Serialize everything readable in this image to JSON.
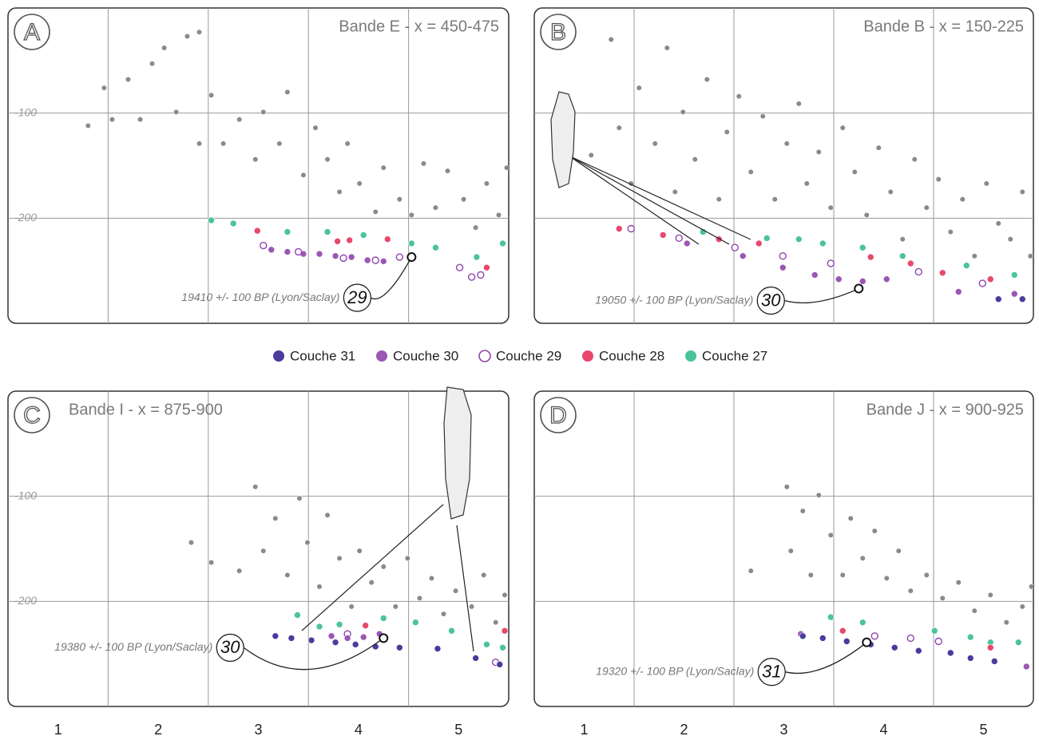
{
  "legend": [
    {
      "name": "Couche 31",
      "color": "#4a3b9c",
      "marker": "filled"
    },
    {
      "name": "Couche 30",
      "color": "#9b57b5",
      "marker": "filled"
    },
    {
      "name": "Couche 29",
      "color": "#8e44ad",
      "marker": "open"
    },
    {
      "name": "Couche 28",
      "color": "#e8486b",
      "marker": "filled"
    },
    {
      "name": "Couche 27",
      "color": "#4cc39a",
      "marker": "filled"
    }
  ],
  "chart_data": [
    {
      "type": "scatter",
      "letter": "A",
      "title": "Bande E - x = 450-475",
      "xlim": [
        0.5,
        5.5
      ],
      "ylim": [
        -300,
        0
      ],
      "yticks": [
        -100,
        -200
      ],
      "ytick_labels": true,
      "xgrid": [
        1.5,
        2.5,
        3.5,
        4.5
      ],
      "series": [
        {
          "color": "#8a8a8a",
          "marker": "filled",
          "x": [
            1.3,
            1.46,
            1.54,
            1.7,
            1.82,
            1.94,
            2.06,
            2.18,
            2.29,
            2.41,
            2.41,
            2.53,
            2.65,
            2.81,
            2.97,
            3.05,
            3.21,
            3.29,
            3.45,
            3.57,
            3.69,
            3.81,
            3.89,
            4.01,
            4.17,
            4.25,
            4.41,
            4.53,
            4.65,
            4.77,
            4.89,
            5.05,
            5.17,
            5.28,
            5.4,
            5.48
          ],
          "values": [
            -112,
            -76,
            -106,
            -68,
            -106,
            -53,
            -38,
            -99,
            -27,
            -23,
            -129,
            -83,
            -129,
            -106,
            -144,
            -99,
            -129,
            -80,
            -159,
            -114,
            -144,
            -175,
            -129,
            -167,
            -194,
            -152,
            -182,
            -197,
            -148,
            -190,
            -155,
            -182,
            -209,
            -167,
            -197,
            -152
          ]
        },
        {
          "color": "#4cc39a",
          "marker": "filled",
          "x": [
            2.53,
            2.75,
            3.29,
            3.69,
            4.05,
            4.53,
            4.77,
            5.18,
            5.44
          ],
          "values": [
            -202,
            -205,
            -213,
            -213,
            -216,
            -224,
            -228,
            -237,
            -224
          ]
        },
        {
          "color": "#e8486b",
          "marker": "filled",
          "x": [
            2.99,
            3.79,
            3.91,
            4.29,
            5.28
          ],
          "values": [
            -212,
            -222,
            -221,
            -220,
            -247
          ]
        },
        {
          "color": "#9b57b5",
          "marker": "filled",
          "x": [
            3.13,
            3.29,
            3.45,
            3.61,
            3.77,
            3.93,
            4.09,
            4.25
          ],
          "values": [
            -230,
            -232,
            -234,
            -234,
            -236,
            -237,
            -240,
            -241
          ]
        },
        {
          "color": "#8e44ad",
          "marker": "open",
          "x": [
            3.05,
            3.4,
            3.85,
            4.17,
            4.41,
            5.01,
            5.13,
            5.22
          ],
          "values": [
            -226,
            -232,
            -238,
            -240,
            -237,
            -247,
            -256,
            -254
          ]
        }
      ],
      "dated": {
        "x": 4.53,
        "y": -237,
        "number": "29",
        "label": "19410 +/- 100 BP (Lyon/Saclay)"
      }
    },
    {
      "type": "scatter",
      "letter": "B",
      "title": "Bande B - x = 150-225",
      "xlim": [
        0.5,
        5.5
      ],
      "ylim": [
        -300,
        0
      ],
      "yticks": [
        -100,
        -200
      ],
      "ytick_labels": false,
      "xgrid": [
        1.5,
        2.5,
        3.5,
        4.5
      ],
      "series": [
        {
          "color": "#8a8a8a",
          "marker": "filled",
          "x": [
            1.07,
            1.27,
            1.35,
            1.47,
            1.55,
            1.71,
            1.83,
            1.91,
            1.99,
            2.11,
            2.23,
            2.35,
            2.43,
            2.55,
            2.67,
            2.79,
            2.91,
            3.03,
            3.15,
            3.23,
            3.35,
            3.47,
            3.59,
            3.71,
            3.83,
            3.95,
            4.07,
            4.19,
            4.31,
            4.43,
            4.55,
            4.67,
            4.79,
            4.91,
            5.03,
            5.15,
            5.27,
            5.39,
            5.47
          ],
          "values": [
            -140,
            -30,
            -114,
            -167,
            -76,
            -129,
            -38,
            -175,
            -99,
            -144,
            -68,
            -182,
            -118,
            -84,
            -156,
            -103,
            -182,
            -129,
            -91,
            -167,
            -137,
            -190,
            -114,
            -156,
            -197,
            -133,
            -175,
            -220,
            -144,
            -190,
            -163,
            -213,
            -182,
            -236,
            -167,
            -205,
            -220,
            -175,
            -236
          ]
        },
        {
          "color": "#4cc39a",
          "marker": "filled",
          "x": [
            2.19,
            2.83,
            3.15,
            3.39,
            3.79,
            4.19,
            4.83,
            5.31
          ],
          "values": [
            -213,
            -219,
            -220,
            -224,
            -228,
            -236,
            -245,
            -254
          ]
        },
        {
          "color": "#e8486b",
          "marker": "filled",
          "x": [
            1.35,
            1.79,
            2.35,
            2.75,
            3.87,
            4.27,
            4.59,
            5.07
          ],
          "values": [
            -210,
            -216,
            -220,
            -224,
            -237,
            -243,
            -252,
            -258
          ]
        },
        {
          "color": "#8e44ad",
          "marker": "open",
          "x": [
            1.47,
            1.95,
            2.51,
            2.99,
            3.47,
            4.35,
            4.99
          ],
          "values": [
            -210,
            -219,
            -228,
            -236,
            -243,
            -251,
            -262
          ]
        },
        {
          "color": "#9b57b5",
          "marker": "filled",
          "x": [
            2.03,
            2.59,
            2.99,
            3.31,
            3.55,
            3.79,
            4.03,
            4.75,
            5.31
          ],
          "values": [
            -224,
            -236,
            -247,
            -254,
            -258,
            -260,
            -258,
            -270,
            -272
          ]
        },
        {
          "color": "#4a3b9c",
          "marker": "filled",
          "x": [
            5.15,
            5.39
          ],
          "values": [
            -277,
            -277
          ]
        }
      ],
      "dated": {
        "x": 3.75,
        "y": -267,
        "number": "30",
        "label": "19050 +/- 100 BP (Lyon/Saclay)"
      }
    },
    {
      "type": "scatter",
      "letter": "C",
      "title": "Bande I - x = 875-900",
      "xlim": [
        0.5,
        5.5
      ],
      "ylim": [
        -300,
        0
      ],
      "yticks": [
        -100,
        -200
      ],
      "ytick_labels": true,
      "xgrid": [
        1.5,
        2.5,
        3.5,
        4.5
      ],
      "xticks": [
        1,
        2,
        3,
        4,
        5
      ],
      "series": [
        {
          "color": "#8a8a8a",
          "marker": "filled",
          "x": [
            2.33,
            2.53,
            2.81,
            2.97,
            3.05,
            3.17,
            3.29,
            3.41,
            3.49,
            3.61,
            3.69,
            3.81,
            3.93,
            4.01,
            4.13,
            4.25,
            4.37,
            4.49,
            4.61,
            4.73,
            4.85,
            4.97,
            5.13,
            5.25,
            5.37,
            5.46
          ],
          "values": [
            -144,
            -163,
            -171,
            -91,
            -152,
            -121,
            -175,
            -102,
            -144,
            -186,
            -118,
            -159,
            -205,
            -152,
            -182,
            -167,
            -205,
            -159,
            -197,
            -178,
            -212,
            -190,
            -205,
            -175,
            -220,
            -194
          ]
        },
        {
          "color": "#4cc39a",
          "marker": "filled",
          "x": [
            3.39,
            3.61,
            3.81,
            4.25,
            4.57,
            4.93,
            5.28,
            5.44
          ],
          "values": [
            -213,
            -224,
            -222,
            -216,
            -220,
            -228,
            -241,
            -244
          ]
        },
        {
          "color": "#e8486b",
          "marker": "filled",
          "x": [
            4.07,
            5.46
          ],
          "values": [
            -223,
            -228
          ]
        },
        {
          "color": "#8e44ad",
          "marker": "open",
          "x": [
            3.89,
            5.37
          ],
          "values": [
            -231,
            -258
          ]
        },
        {
          "color": "#9b57b5",
          "marker": "filled",
          "x": [
            3.73,
            3.89,
            4.05,
            4.21
          ],
          "values": [
            -233,
            -235,
            -234,
            -231
          ]
        },
        {
          "color": "#4a3b9c",
          "marker": "filled",
          "x": [
            3.17,
            3.33,
            3.53,
            3.77,
            3.97,
            4.17,
            4.41,
            4.79,
            5.17,
            5.41
          ],
          "values": [
            -233,
            -235,
            -237,
            -239,
            -241,
            -243,
            -244,
            -245,
            -254,
            -260
          ]
        }
      ],
      "dated": {
        "x": 4.25,
        "y": -235,
        "number": "30",
        "label": "19380 +/- 100 BP (Lyon/Saclay)"
      }
    },
    {
      "type": "scatter",
      "letter": "D",
      "title": "Bande J - x = 900-925",
      "xlim": [
        0.5,
        5.5
      ],
      "ylim": [
        -300,
        0
      ],
      "yticks": [
        -100,
        -200
      ],
      "ytick_labels": false,
      "xgrid": [
        1.5,
        2.5,
        3.5,
        4.5
      ],
      "xticks": [
        1,
        2,
        3,
        4,
        5
      ],
      "series": [
        {
          "color": "#8a8a8a",
          "marker": "filled",
          "x": [
            2.67,
            3.03,
            3.07,
            3.19,
            3.27,
            3.35,
            3.47,
            3.59,
            3.67,
            3.79,
            3.91,
            4.03,
            4.15,
            4.27,
            4.43,
            4.59,
            4.75,
            4.91,
            5.07,
            5.23,
            5.39,
            5.48
          ],
          "values": [
            -171,
            -91,
            -152,
            -114,
            -175,
            -99,
            -137,
            -175,
            -121,
            -159,
            -133,
            -178,
            -152,
            -190,
            -175,
            -197,
            -182,
            -209,
            -194,
            -220,
            -205,
            -186
          ]
        },
        {
          "color": "#4cc39a",
          "marker": "filled",
          "x": [
            3.47,
            3.79,
            4.51,
            4.87,
            5.07,
            5.35
          ],
          "values": [
            -215,
            -220,
            -228,
            -234,
            -239,
            -239
          ]
        },
        {
          "color": "#e8486b",
          "marker": "filled",
          "x": [
            3.59,
            5.07
          ],
          "values": [
            -228,
            -244
          ]
        },
        {
          "color": "#8e44ad",
          "marker": "open",
          "x": [
            3.91,
            4.27,
            4.55
          ],
          "values": [
            -233,
            -235,
            -238
          ]
        },
        {
          "color": "#9b57b5",
          "marker": "filled",
          "x": [
            3.17,
            5.43
          ],
          "values": [
            -231,
            -262
          ]
        },
        {
          "color": "#4a3b9c",
          "marker": "filled",
          "x": [
            3.19,
            3.39,
            3.63,
            3.87,
            4.11,
            4.35,
            4.67,
            4.87,
            5.11
          ],
          "values": [
            -233,
            -235,
            -238,
            -241,
            -244,
            -247,
            -249,
            -254,
            -257
          ]
        }
      ],
      "dated": {
        "x": 3.83,
        "y": -239,
        "number": "31",
        "label": "19320 +/- 100 BP (Lyon/Saclay)"
      }
    }
  ]
}
